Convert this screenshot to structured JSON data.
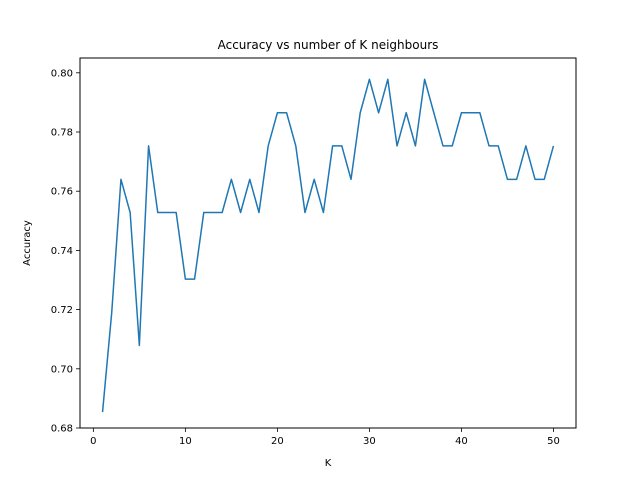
{
  "chart_data": {
    "type": "line",
    "title": "Accuracy vs number of K neighbours",
    "xlabel": "K",
    "ylabel": "Accuracy",
    "xlim": [
      -1.45,
      52.45
    ],
    "ylim": [
      0.68,
      0.805
    ],
    "xticks": [
      0,
      10,
      20,
      30,
      40,
      50
    ],
    "yticks": [
      0.68,
      0.7,
      0.72,
      0.74,
      0.76,
      0.78,
      0.8
    ],
    "xtick_labels": [
      "0",
      "10",
      "20",
      "30",
      "40",
      "50"
    ],
    "ytick_labels": [
      "0.68",
      "0.70",
      "0.72",
      "0.74",
      "0.76",
      "0.78",
      "0.80"
    ],
    "grid": false,
    "series": [
      {
        "color": "#1f77b4",
        "x": [
          1,
          2,
          3,
          4,
          5,
          6,
          7,
          8,
          9,
          10,
          11,
          12,
          13,
          14,
          15,
          16,
          17,
          18,
          19,
          20,
          21,
          22,
          23,
          24,
          25,
          26,
          27,
          28,
          29,
          30,
          31,
          32,
          33,
          34,
          35,
          36,
          37,
          38,
          39,
          40,
          41,
          42,
          43,
          44,
          45,
          46,
          47,
          48,
          49,
          50
        ],
        "y": [
          0.6854,
          0.7191,
          0.764,
          0.7528,
          0.7079,
          0.7753,
          0.7528,
          0.7528,
          0.7528,
          0.7303,
          0.7303,
          0.7528,
          0.7528,
          0.7528,
          0.764,
          0.7528,
          0.764,
          0.7528,
          0.7753,
          0.7865,
          0.7865,
          0.7753,
          0.7528,
          0.764,
          0.7528,
          0.7753,
          0.7753,
          0.764,
          0.7865,
          0.7978,
          0.7865,
          0.7978,
          0.7753,
          0.7865,
          0.7753,
          0.7978,
          0.7865,
          0.7753,
          0.7753,
          0.7865,
          0.7865,
          0.7865,
          0.7753,
          0.7753,
          0.764,
          0.764,
          0.7753,
          0.764,
          0.764,
          0.7753
        ]
      }
    ]
  }
}
